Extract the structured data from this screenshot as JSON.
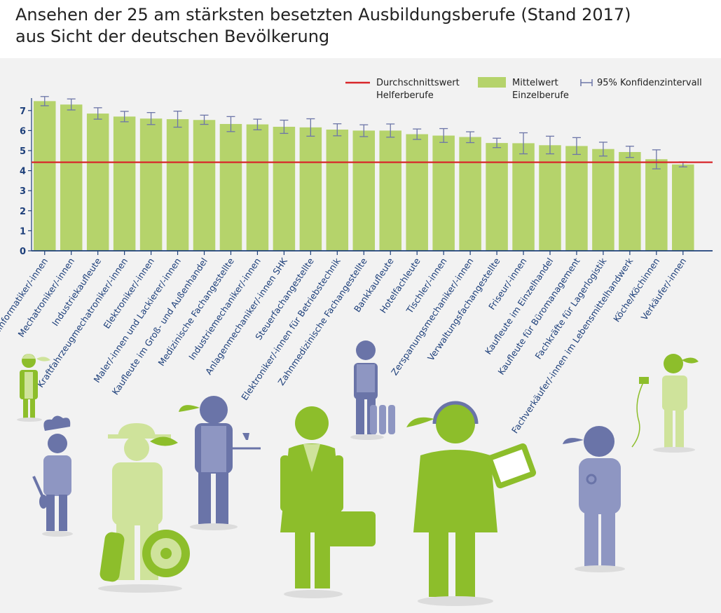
{
  "title_line1": "Ansehen der 25 am stärksten besetzten Ausbildungsberufe (Stand 2017)",
  "title_line2": "aus Sicht der deutschen Bevölkerung",
  "legend": {
    "avg_line1": "Durchschnittswert",
    "avg_line2": "Helferberufe",
    "mean_line1": "Mittelwert",
    "mean_line2": "Einzelberufe",
    "ci": "95% Konfidenzintervall"
  },
  "colors": {
    "bar": "#b5d36b",
    "error": "#6d76a8",
    "avg_line": "#d8262a",
    "axis": "#1d3f7a",
    "figure_green": "#8dbe2b",
    "figure_light": "#cfe39b",
    "figure_blue": "#6a74a8"
  },
  "chart_data": {
    "type": "bar",
    "title": "Ansehen der 25 am stärksten besetzten Ausbildungsberufe (Stand 2017) aus Sicht der deutschen Bevölkerung",
    "ylim": [
      0,
      7.5
    ],
    "yticks": [
      "0",
      "1",
      "2",
      "3",
      "4",
      "5",
      "6",
      "7"
    ],
    "reference_line": 4.42,
    "categories": [
      "Fachinformatiker/-innen",
      "Mechatroniker/-innen",
      "Industriekaufleute",
      "Kraftfahrzeugmechatroniker/-innen",
      "Elektroniker/-innen",
      "Maler/-innen und Lackierer/-innen",
      "Kaufleute im Groß- und Außenhandel",
      "Medizinische Fachangestellte",
      "Industriemechaniker/-innen",
      "Anlagenmechaniker/-innen SHK",
      "Steuerfachangestellte",
      "Elektroniker/-innen für Betriebstechnik",
      "Zahnmedizinische Fachangestellte",
      "Bankkaufleute",
      "Hotelfachleute",
      "Tischler/-innen",
      "Zerspanungsmechaniker/-innen",
      "Verwaltungsfachangestellte",
      "Friseur/-innen",
      "Kaufleute im Einzelhandel",
      "Kaufleute für Büromanagement",
      "Fachkräfte für Lagerlogistik",
      "Fachverkäufer/-innen im Lebensmittelhandwerk",
      "Köche/Köchinnen",
      "Verkäufer/-innen"
    ],
    "values": [
      7.47,
      7.3,
      6.85,
      6.7,
      6.6,
      6.57,
      6.53,
      6.33,
      6.31,
      6.19,
      6.16,
      6.05,
      6.0,
      6.0,
      5.82,
      5.75,
      5.68,
      5.38,
      5.37,
      5.27,
      5.23,
      5.08,
      4.93,
      4.57,
      4.31
    ],
    "ci_low": [
      7.24,
      7.03,
      6.57,
      6.44,
      6.3,
      6.17,
      6.31,
      5.95,
      6.04,
      5.86,
      5.72,
      5.74,
      5.7,
      5.67,
      5.56,
      5.41,
      5.4,
      5.15,
      4.84,
      4.84,
      4.81,
      4.73,
      4.66,
      4.09,
      4.19
    ],
    "ci_high": [
      7.7,
      7.58,
      7.14,
      6.96,
      6.9,
      6.97,
      6.77,
      6.7,
      6.57,
      6.52,
      6.59,
      6.34,
      6.29,
      6.33,
      6.08,
      6.1,
      5.94,
      5.62,
      5.89,
      5.72,
      5.65,
      5.42,
      5.22,
      5.04,
      4.44
    ]
  }
}
